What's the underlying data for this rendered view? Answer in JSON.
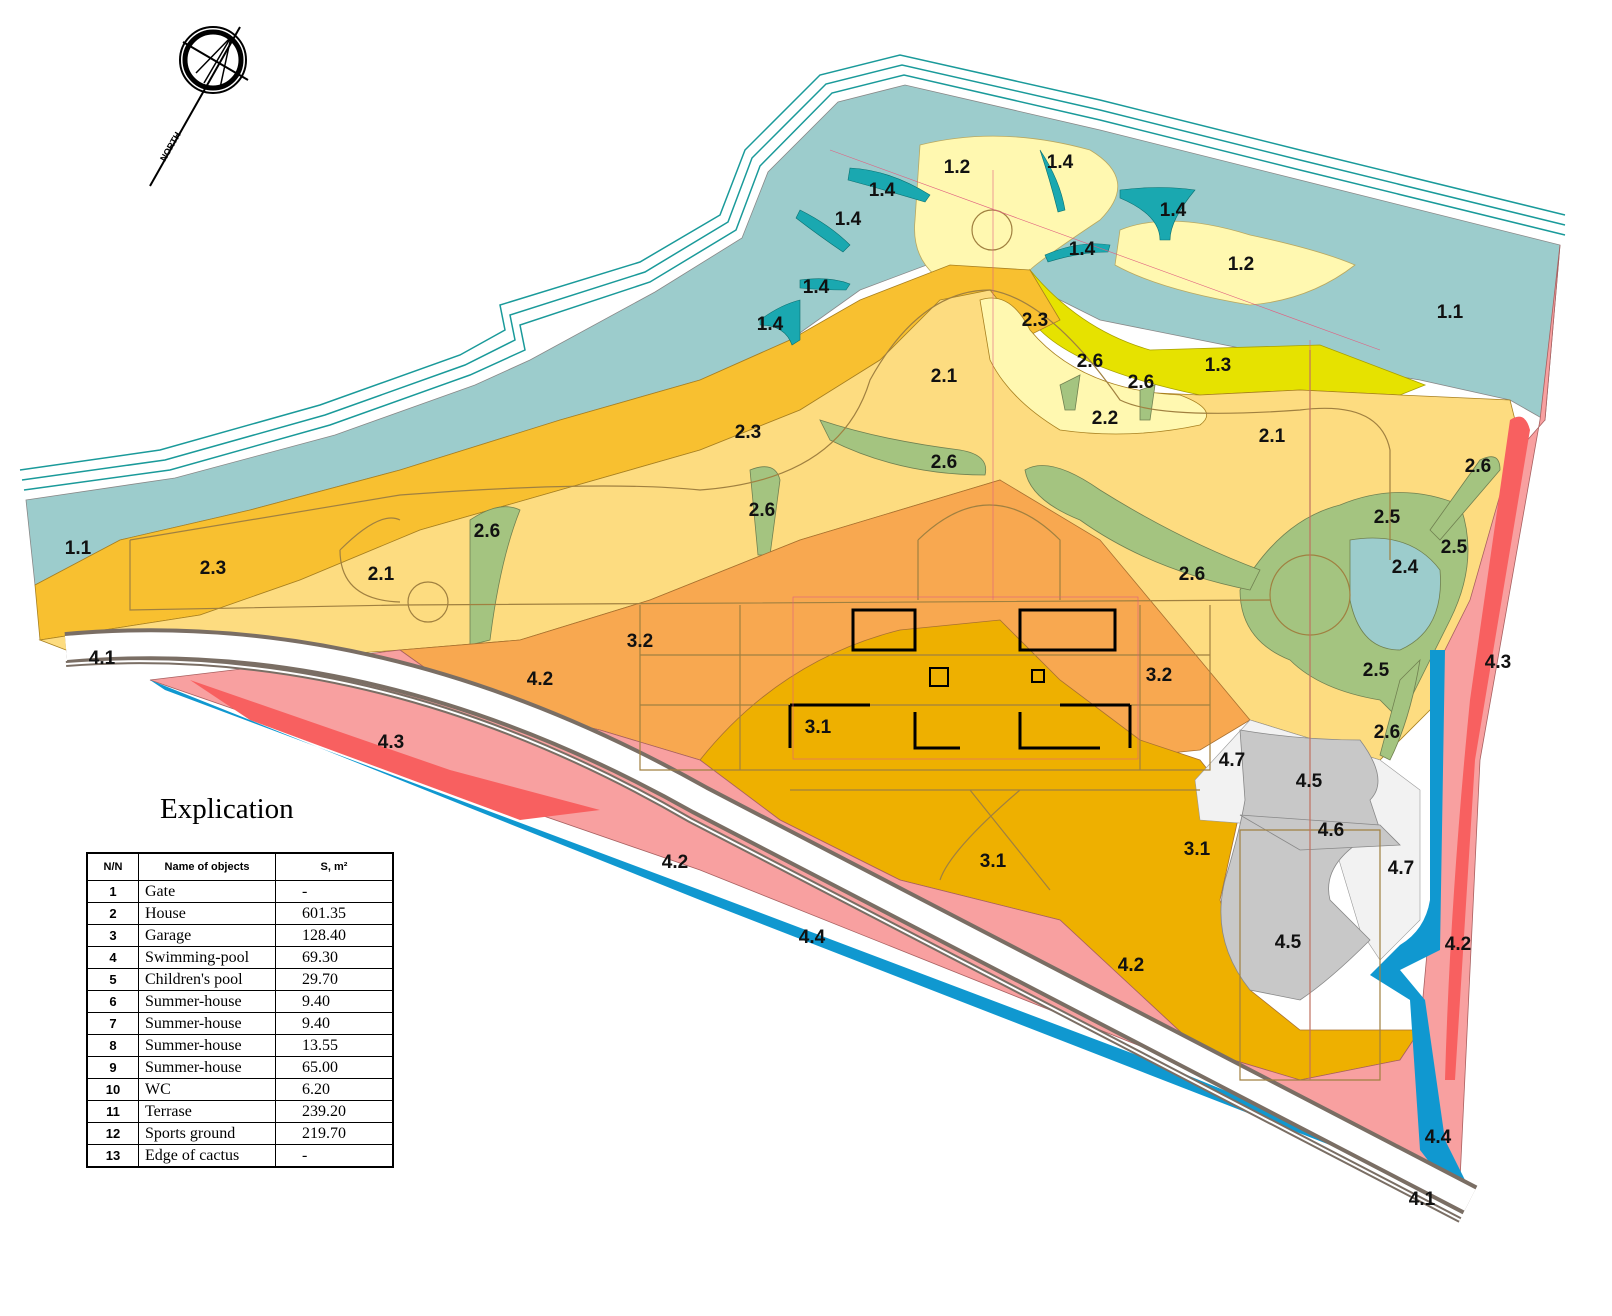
{
  "north_label": "NORTH",
  "zone_labels": {
    "z1_1a": "1.1",
    "z1_1b": "1.1",
    "z1_2a": "1.2",
    "z1_2b": "1.2",
    "z1_3": "1.3",
    "z1_4a": "1.4",
    "z1_4b": "1.4",
    "z1_4c": "1.4",
    "z1_4d": "1.4",
    "z1_4e": "1.4",
    "z1_4f": "1.4",
    "z1_4g": "1.4",
    "z2_1a": "2.1",
    "z2_1b": "2.1",
    "z2_1c": "2.1",
    "z2_2": "2.2",
    "z2_3a": "2.3",
    "z2_3b": "2.3",
    "z2_3c": "2.3",
    "z2_4": "2.4",
    "z2_5a": "2.5",
    "z2_5b": "2.5",
    "z2_5c": "2.5",
    "z2_6a": "2.6",
    "z2_6b": "2.6",
    "z2_6c": "2.6",
    "z2_6d": "2.6",
    "z2_6e": "2.6",
    "z2_6f": "2.6",
    "z2_6g": "2.6",
    "z2_6h": "2.6",
    "z3_1a": "3.1",
    "z3_1b": "3.1",
    "z3_1c": "3.1",
    "z3_2a": "3.2",
    "z3_2b": "3.2",
    "z4_1a": "4.1",
    "z4_1b": "4.1",
    "z4_2a": "4.2",
    "z4_2b": "4.2",
    "z4_2c": "4.2",
    "z4_2d": "4.2",
    "z4_3a": "4.3",
    "z4_3b": "4.3",
    "z4_4a": "4.4",
    "z4_4b": "4.4",
    "z4_5a": "4.5",
    "z4_5b": "4.5",
    "z4_6": "4.6",
    "z4_7a": "4.7",
    "z4_7b": "4.7"
  },
  "colors": {
    "water_blue": "#9ccccc",
    "teal": "#1aa8b0",
    "cream": "#fff8b0",
    "yellow": "#e6e200",
    "light_orange": "#fddc80",
    "orange_gold": "#f8c030",
    "green": "#a4c480",
    "orange": "#f8a850",
    "gold": "#eeb000",
    "pink": "#f8a0a0",
    "red": "#f86060",
    "blue": "#1098d0",
    "grey": "#c8c8c8",
    "road": "#8a7a6a"
  },
  "explication": {
    "title": "Explication",
    "headers": [
      "N/N",
      "Name of objects",
      "S, m²"
    ],
    "rows": [
      [
        "1",
        "Gate",
        "-"
      ],
      [
        "2",
        "House",
        "601.35"
      ],
      [
        "3",
        "Garage",
        "128.40"
      ],
      [
        "4",
        "Swimming-pool",
        "69.30"
      ],
      [
        "5",
        "Children's pool",
        "29.70"
      ],
      [
        "6",
        "Summer-house",
        "9.40"
      ],
      [
        "7",
        "Summer-house",
        "9.40"
      ],
      [
        "8",
        "Summer-house",
        "13.55"
      ],
      [
        "9",
        "Summer-house",
        "65.00"
      ],
      [
        "10",
        "WC",
        "6.20"
      ],
      [
        "11",
        "Terrase",
        "239.20"
      ],
      [
        "12",
        "Sports ground",
        "219.70"
      ],
      [
        "13",
        "Edge of cactus",
        "-"
      ]
    ]
  }
}
